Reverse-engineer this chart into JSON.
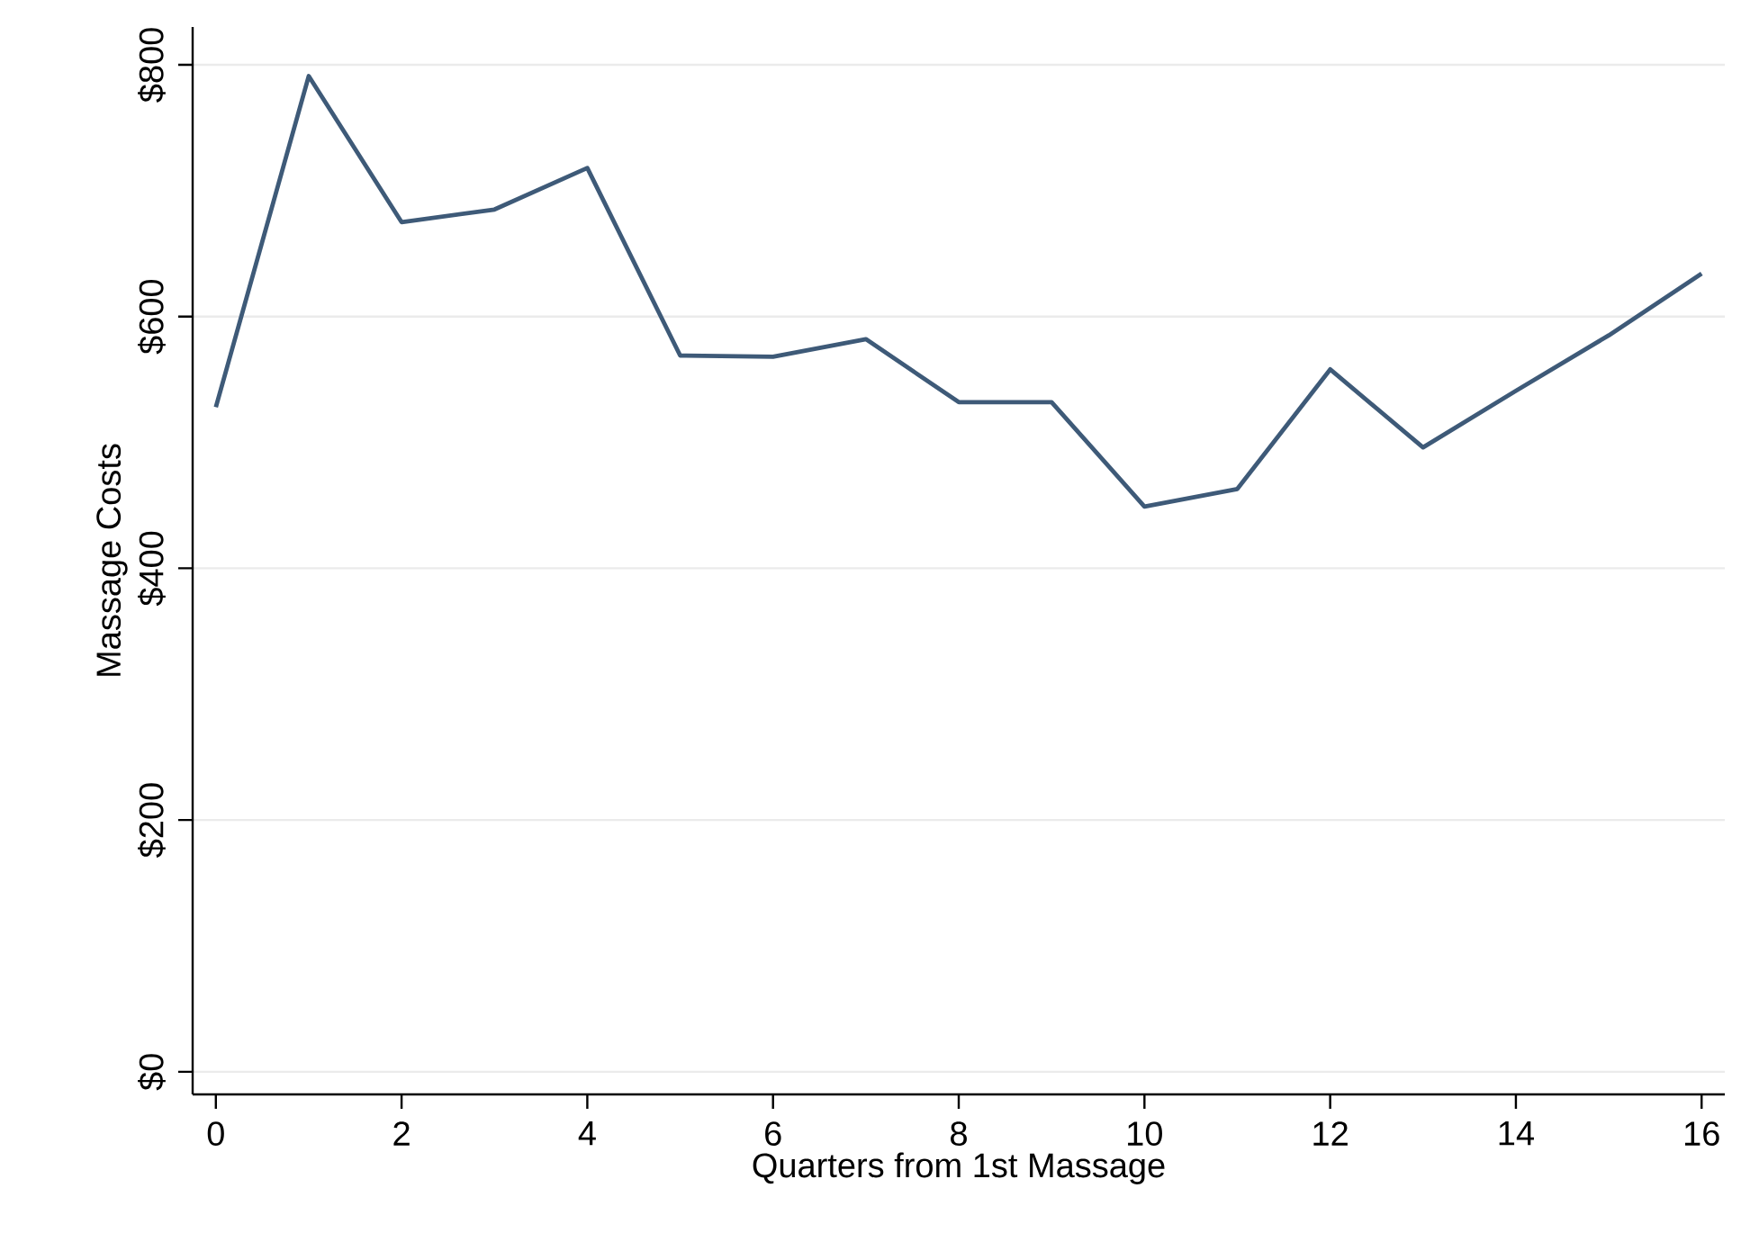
{
  "chart_data": {
    "type": "line",
    "xlabel": "Quarters from 1st Massage",
    "ylabel": "Massage Costs",
    "x": [
      0,
      1,
      2,
      3,
      4,
      5,
      6,
      7,
      8,
      9,
      10,
      11,
      12,
      13,
      14,
      15,
      16
    ],
    "series": [
      {
        "color": "#3e5a78",
        "values": [
          528,
          791,
          675,
          685,
          718,
          569,
          568,
          582,
          532,
          532,
          449,
          463,
          558,
          496,
          541,
          585,
          634
        ]
      }
    ],
    "xlim": [
      -0.25,
      16.25
    ],
    "ylim": [
      -18,
      830
    ],
    "xticks": [
      0,
      2,
      4,
      6,
      8,
      10,
      12,
      14,
      16
    ],
    "yticks": [
      {
        "value": 0,
        "label": "$0"
      },
      {
        "value": 200,
        "label": "$200"
      },
      {
        "value": 400,
        "label": "$400"
      },
      {
        "value": 600,
        "label": "$600"
      },
      {
        "value": 800,
        "label": "$800"
      }
    ],
    "grid": "y",
    "legend": false,
    "marker": "none",
    "line_style": "solid"
  }
}
